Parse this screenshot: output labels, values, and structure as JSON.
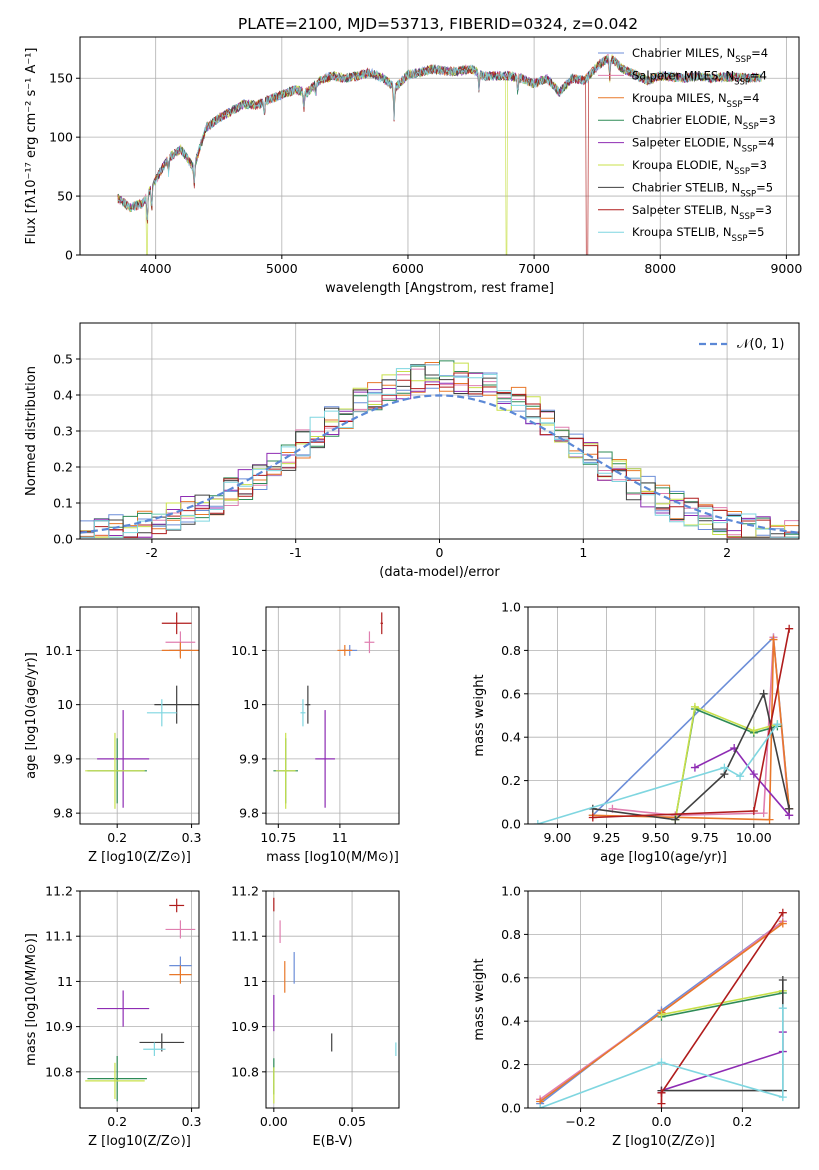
{
  "figure_title": "PLATE=2100, MJD=53713, FIBERID=0324, z=0.042",
  "series": [
    {
      "name": "Chabrier MILES",
      "nssp": "4",
      "color": "#6c8ed8"
    },
    {
      "name": "Salpeter MILES",
      "nssp": "4",
      "color": "#e07fb0"
    },
    {
      "name": "Kroupa MILES",
      "nssp": "4",
      "color": "#e8782a"
    },
    {
      "name": "Chabrier ELODIE",
      "nssp": "3",
      "color": "#2e8b57"
    },
    {
      "name": "Salpeter ELODIE",
      "nssp": "4",
      "color": "#8e2cb3"
    },
    {
      "name": "Kroupa ELODIE",
      "nssp": "3",
      "color": "#c8e04a"
    },
    {
      "name": "Chabrier STELIB",
      "nssp": "5",
      "color": "#404040"
    },
    {
      "name": "Salpeter STELIB",
      "nssp": "3",
      "color": "#b01c1c"
    },
    {
      "name": "Kroupa STELIB",
      "nssp": "5",
      "color": "#7fd6e0"
    }
  ],
  "chart_data": [
    {
      "id": "spectrum",
      "type": "line",
      "xlabel": "wavelength [Angstrom, rest frame]",
      "ylabel": "Flux [fλ10⁻¹⁷ erg cm⁻² s⁻¹ A⁻¹]",
      "xlim": [
        3400,
        9100
      ],
      "ylim": [
        0,
        185
      ],
      "xticks": [
        4000,
        5000,
        6000,
        7000,
        8000,
        9000
      ],
      "yticks": [
        0,
        50,
        100,
        150
      ],
      "legend_position": "right",
      "x": [
        3700,
        3800,
        3900,
        4000,
        4100,
        4200,
        4300,
        4400,
        4500,
        4600,
        4700,
        4800,
        4900,
        5000,
        5100,
        5200,
        5300,
        5400,
        5500,
        5600,
        5700,
        5800,
        5900,
        6000,
        6100,
        6200,
        6300,
        6400,
        6500,
        6600,
        6700,
        6800,
        6900,
        7000,
        7100,
        7200,
        7300,
        7400,
        7500,
        7600,
        7700,
        7800,
        7900,
        8000,
        8100,
        8200,
        8300,
        8400,
        8500,
        8600,
        8700,
        8800
      ],
      "y": [
        48,
        40,
        44,
        64,
        82,
        90,
        74,
        108,
        116,
        122,
        128,
        127,
        132,
        136,
        140,
        138,
        148,
        152,
        150,
        152,
        155,
        150,
        142,
        153,
        155,
        158,
        156,
        156,
        158,
        152,
        152,
        152,
        150,
        145,
        150,
        138,
        150,
        148,
        160,
        168,
        158,
        153,
        148,
        152,
        151,
        150,
        152,
        150,
        151,
        151,
        150,
        151
      ],
      "dropouts": [
        {
          "series": "Kroupa ELODIE",
          "x": 6780
        },
        {
          "series": "Salpeter STELIB",
          "x": 7420
        },
        {
          "series": "Kroupa ELODIE",
          "x": 3930
        }
      ]
    },
    {
      "id": "residual-hist",
      "type": "histogram",
      "xlabel": "(data-model)/error",
      "ylabel": "Normed distribution",
      "xlim": [
        -2.5,
        2.5
      ],
      "ylim": [
        0,
        0.6
      ],
      "xticks": [
        -2,
        -1,
        0,
        1,
        2
      ],
      "yticks": [
        0.0,
        0.1,
        0.2,
        0.3,
        0.4,
        0.5
      ],
      "grid": true,
      "bin_width": 0.1,
      "bin_start": -2.5,
      "reference_curve": {
        "label": "𝒩(0, 1)",
        "mu": 0,
        "sigma": 1,
        "style": "dashed",
        "color": "#5b88d6"
      },
      "legend_position": "top-right"
    },
    {
      "id": "age-vs-Z",
      "type": "scatter",
      "xlabel": "Z [log10(Z/Z⊙)]",
      "ylabel": "age  [log10(age/yr)]",
      "xlim": [
        0.15,
        0.31
      ],
      "ylim": [
        9.78,
        10.18
      ],
      "xticks": [
        0.2,
        0.3
      ],
      "yticks": [
        9.8,
        9.9,
        10.0,
        10.1
      ],
      "points": [
        {
          "series": "Chabrier MILES",
          "x": 0.285,
          "y": 10.1,
          "xerr": 0.015,
          "yerr": 0.012
        },
        {
          "series": "Salpeter MILES",
          "x": 0.285,
          "y": 10.115,
          "xerr": 0.02,
          "yerr": 0.02
        },
        {
          "series": "Kroupa MILES",
          "x": 0.285,
          "y": 10.1,
          "xerr": 0.025,
          "yerr": 0.015
        },
        {
          "series": "Chabrier ELODIE",
          "x": 0.2,
          "y": 9.878,
          "xerr": 0.04,
          "yerr": 0.06
        },
        {
          "series": "Salpeter ELODIE",
          "x": 0.208,
          "y": 9.9,
          "xerr": 0.035,
          "yerr": 0.09
        },
        {
          "series": "Kroupa ELODIE",
          "x": 0.197,
          "y": 9.878,
          "xerr": 0.04,
          "yerr": 0.07
        },
        {
          "series": "Chabrier STELIB",
          "x": 0.28,
          "y": 10.0,
          "xerr": 0.03,
          "yerr": 0.035
        },
        {
          "series": "Salpeter STELIB",
          "x": 0.28,
          "y": 10.15,
          "xerr": 0.02,
          "yerr": 0.02
        },
        {
          "series": "Kroupa STELIB",
          "x": 0.26,
          "y": 9.985,
          "xerr": 0.02,
          "yerr": 0.025
        }
      ]
    },
    {
      "id": "age-vs-mass",
      "type": "scatter",
      "xlabel": "mass [log10(M/M⊙)]",
      "ylabel": "",
      "xlim": [
        10.7,
        11.24
      ],
      "ylim": [
        9.78,
        10.18
      ],
      "xticks": [
        10.75,
        11.0
      ],
      "yticks": [
        9.8,
        9.9,
        10.0,
        10.1
      ],
      "points": [
        {
          "series": "Chabrier MILES",
          "x": 11.04,
          "y": 10.1,
          "xerr": 0.03,
          "yerr": 0.01
        },
        {
          "series": "Salpeter MILES",
          "x": 11.12,
          "y": 10.115,
          "xerr": 0.02,
          "yerr": 0.02
        },
        {
          "series": "Kroupa MILES",
          "x": 11.02,
          "y": 10.1,
          "xerr": 0.03,
          "yerr": 0.01
        },
        {
          "series": "Chabrier ELODIE",
          "x": 10.78,
          "y": 9.878,
          "xerr": 0.05,
          "yerr": 0.06
        },
        {
          "series": "Salpeter ELODIE",
          "x": 10.94,
          "y": 9.9,
          "xerr": 0.04,
          "yerr": 0.09
        },
        {
          "series": "Kroupa ELODIE",
          "x": 10.78,
          "y": 9.878,
          "xerr": 0.04,
          "yerr": 0.07
        },
        {
          "series": "Chabrier STELIB",
          "x": 10.87,
          "y": 10.0,
          "xerr": 0.01,
          "yerr": 0.035
        },
        {
          "series": "Salpeter STELIB",
          "x": 11.17,
          "y": 10.15,
          "xerr": 0.005,
          "yerr": 0.02
        },
        {
          "series": "Kroupa STELIB",
          "x": 10.85,
          "y": 9.985,
          "xerr": 0.01,
          "yerr": 0.025
        }
      ]
    },
    {
      "id": "weight-vs-age",
      "type": "line",
      "xlabel": "age  [log10(age/yr)]",
      "ylabel": "mass weight",
      "xlim": [
        8.85,
        10.23
      ],
      "ylim": [
        0,
        1
      ],
      "xticks": [
        9.0,
        9.25,
        9.5,
        9.75,
        10.0
      ],
      "xticklabels": [
        "9.00",
        "9.25",
        "9.50",
        "9.75",
        "10.00"
      ],
      "yticks": [
        0.0,
        0.2,
        0.4,
        0.6,
        0.8,
        1.0
      ],
      "grid": true,
      "lines": [
        {
          "series": "Chabrier MILES",
          "x": [
            9.18,
            10.1,
            10.18
          ],
          "y": [
            0.04,
            0.86,
            0.07
          ]
        },
        {
          "series": "Salpeter MILES",
          "x": [
            9.28,
            9.6,
            10.05,
            10.1,
            10.18
          ],
          "y": [
            0.07,
            0.04,
            0.05,
            0.86,
            0.04
          ]
        },
        {
          "series": "Kroupa MILES",
          "x": [
            9.18,
            10.08,
            10.1,
            10.18
          ],
          "y": [
            0.04,
            0.02,
            0.85,
            0.07
          ]
        },
        {
          "series": "Chabrier ELODIE",
          "x": [
            9.6,
            9.7,
            10.0,
            10.12
          ],
          "y": [
            0.02,
            0.53,
            0.42,
            0.45
          ]
        },
        {
          "series": "Salpeter ELODIE",
          "x": [
            9.7,
            9.9,
            10.0,
            10.18
          ],
          "y": [
            0.26,
            0.35,
            0.23,
            0.04
          ]
        },
        {
          "series": "Kroupa ELODIE",
          "x": [
            9.6,
            9.7,
            10.0,
            10.12
          ],
          "y": [
            0.02,
            0.54,
            0.43,
            0.46
          ]
        },
        {
          "series": "Chabrier STELIB",
          "x": [
            9.18,
            9.6,
            9.85,
            10.05,
            10.18
          ],
          "y": [
            0.07,
            0.02,
            0.23,
            0.6,
            0.07
          ]
        },
        {
          "series": "Salpeter STELIB",
          "x": [
            9.18,
            10.0,
            10.18
          ],
          "y": [
            0.03,
            0.06,
            0.9
          ]
        },
        {
          "series": "Kroupa STELIB",
          "x": [
            8.9,
            9.85,
            9.93,
            10.12
          ],
          "y": [
            0.0,
            0.26,
            0.22,
            0.46
          ]
        }
      ]
    },
    {
      "id": "mass-vs-Z",
      "type": "scatter",
      "xlabel": "Z [log10(Z/Z⊙)]",
      "ylabel": "mass [log10(M/M⊙)]",
      "xlim": [
        0.15,
        0.31
      ],
      "ylim": [
        10.72,
        11.2
      ],
      "xticks": [
        0.2,
        0.3
      ],
      "yticks": [
        10.8,
        10.9,
        11.0,
        11.1,
        11.2
      ],
      "points": [
        {
          "series": "Chabrier MILES",
          "x": 0.285,
          "y": 11.035,
          "xerr": 0.015,
          "yerr": 0.02
        },
        {
          "series": "Salpeter MILES",
          "x": 0.285,
          "y": 11.115,
          "xerr": 0.02,
          "yerr": 0.02
        },
        {
          "series": "Kroupa MILES",
          "x": 0.285,
          "y": 11.015,
          "xerr": 0.015,
          "yerr": 0.02
        },
        {
          "series": "Chabrier ELODIE",
          "x": 0.2,
          "y": 10.785,
          "xerr": 0.04,
          "yerr": 0.05
        },
        {
          "series": "Salpeter ELODIE",
          "x": 0.208,
          "y": 10.94,
          "xerr": 0.035,
          "yerr": 0.04
        },
        {
          "series": "Kroupa ELODIE",
          "x": 0.197,
          "y": 10.78,
          "xerr": 0.04,
          "yerr": 0.04
        },
        {
          "series": "Chabrier STELIB",
          "x": 0.26,
          "y": 10.865,
          "xerr": 0.03,
          "yerr": 0.02
        },
        {
          "series": "Salpeter STELIB",
          "x": 0.28,
          "y": 11.168,
          "xerr": 0.01,
          "yerr": 0.015
        },
        {
          "series": "Kroupa STELIB",
          "x": 0.25,
          "y": 10.85,
          "xerr": 0.015,
          "yerr": 0.015
        }
      ]
    },
    {
      "id": "mass-vs-ebv",
      "type": "scatter",
      "xlabel": "E(B-V)",
      "ylabel": "",
      "xlim": [
        -0.005,
        0.08
      ],
      "ylim": [
        10.72,
        11.2
      ],
      "xticks": [
        0.0,
        0.05
      ],
      "xticklabels": [
        "0.00",
        "0.05"
      ],
      "yticks": [
        10.8,
        10.9,
        11.0,
        11.1,
        11.2
      ],
      "points": [
        {
          "series": "Chabrier MILES",
          "x": 0.013,
          "y": 11.03,
          "xerr": 0.0,
          "yerr": 0.035
        },
        {
          "series": "Salpeter MILES",
          "x": 0.004,
          "y": 11.11,
          "xerr": 0.0,
          "yerr": 0.025
        },
        {
          "series": "Kroupa MILES",
          "x": 0.007,
          "y": 11.01,
          "xerr": 0.0,
          "yerr": 0.035
        },
        {
          "series": "Chabrier ELODIE",
          "x": 0.0,
          "y": 10.79,
          "xerr": 0.0,
          "yerr": 0.04
        },
        {
          "series": "Salpeter ELODIE",
          "x": 0.0,
          "y": 10.93,
          "xerr": 0.0,
          "yerr": 0.04
        },
        {
          "series": "Kroupa ELODIE",
          "x": 0.0,
          "y": 10.77,
          "xerr": 0.0,
          "yerr": 0.04
        },
        {
          "series": "Chabrier STELIB",
          "x": 0.037,
          "y": 10.865,
          "xerr": 0.0,
          "yerr": 0.02
        },
        {
          "series": "Salpeter STELIB",
          "x": 0.0,
          "y": 11.17,
          "xerr": 0.0,
          "yerr": 0.015
        },
        {
          "series": "Kroupa STELIB",
          "x": 0.078,
          "y": 10.85,
          "xerr": 0.0,
          "yerr": 0.015
        }
      ]
    },
    {
      "id": "weight-vs-Z",
      "type": "line",
      "xlabel": "Z [log10(Z/Z⊙)]",
      "ylabel": "mass weight",
      "xlim": [
        -0.33,
        0.34
      ],
      "ylim": [
        0,
        1
      ],
      "xticks": [
        -0.2,
        0.0,
        0.2
      ],
      "xticklabels": [
        "−0.2",
        "0.0",
        "0.2"
      ],
      "yticks": [
        0.0,
        0.2,
        0.4,
        0.6,
        0.8,
        1.0
      ],
      "grid": true,
      "lines": [
        {
          "series": "Chabrier MILES",
          "x": [
            -0.3,
            0.0,
            0.3
          ],
          "y": [
            0.02,
            0.45,
            0.86
          ]
        },
        {
          "series": "Salpeter MILES",
          "x": [
            -0.3,
            0.0,
            0.3
          ],
          "y": [
            0.04,
            0.44,
            0.86
          ]
        },
        {
          "series": "Kroupa MILES",
          "x": [
            -0.3,
            0.0,
            0.3
          ],
          "y": [
            0.03,
            0.44,
            0.85
          ]
        },
        {
          "series": "Chabrier ELODIE",
          "x": [
            0.0,
            0.3
          ],
          "y": [
            0.42,
            0.53
          ]
        },
        {
          "series": "Salpeter ELODIE",
          "x": [
            0.0,
            0.0,
            0.3,
            0.3
          ],
          "y": [
            0.07,
            0.08,
            0.26,
            0.35
          ]
        },
        {
          "series": "Kroupa ELODIE",
          "x": [
            0.0,
            0.3
          ],
          "y": [
            0.43,
            0.54
          ]
        },
        {
          "series": "Chabrier STELIB",
          "x": [
            0.0,
            0.3,
            0.3
          ],
          "y": [
            0.08,
            0.08,
            0.59
          ]
        },
        {
          "series": "Salpeter STELIB",
          "x": [
            0.0,
            0.0,
            0.3
          ],
          "y": [
            0.02,
            0.07,
            0.9
          ]
        },
        {
          "series": "Kroupa STELIB",
          "x": [
            -0.3,
            0.0,
            0.3,
            0.3
          ],
          "y": [
            0.0,
            0.21,
            0.05,
            0.46
          ]
        }
      ]
    }
  ]
}
